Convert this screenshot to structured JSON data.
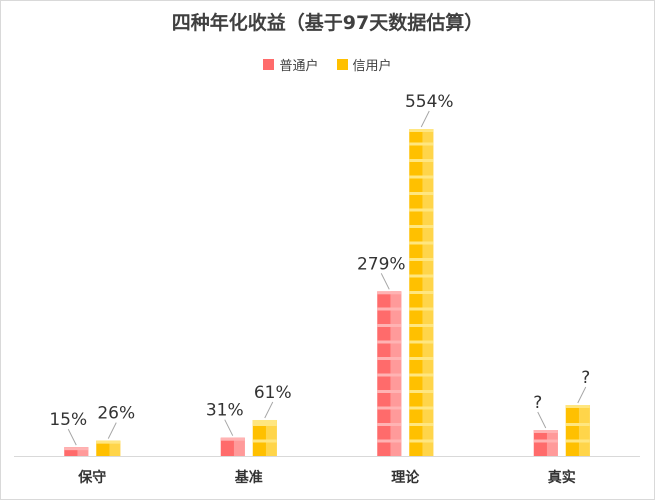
{
  "chart_data": {
    "type": "bar",
    "title": "四种年化收益（基于97天数据估算）",
    "categories": [
      "保守",
      "基准",
      "理论",
      "真实"
    ],
    "series": [
      {
        "name": "普通户",
        "values": [
          15,
          31,
          279,
          null
        ],
        "labels": [
          "15%",
          "31%",
          "279%",
          "?"
        ],
        "color": "#ff6b6b"
      },
      {
        "name": "信用户",
        "values": [
          26,
          61,
          554,
          null
        ],
        "labels": [
          "26%",
          "61%",
          "554%",
          "?"
        ],
        "color": "#ffc000"
      }
    ],
    "unit": "%",
    "legend_position": "top",
    "grid": false
  }
}
